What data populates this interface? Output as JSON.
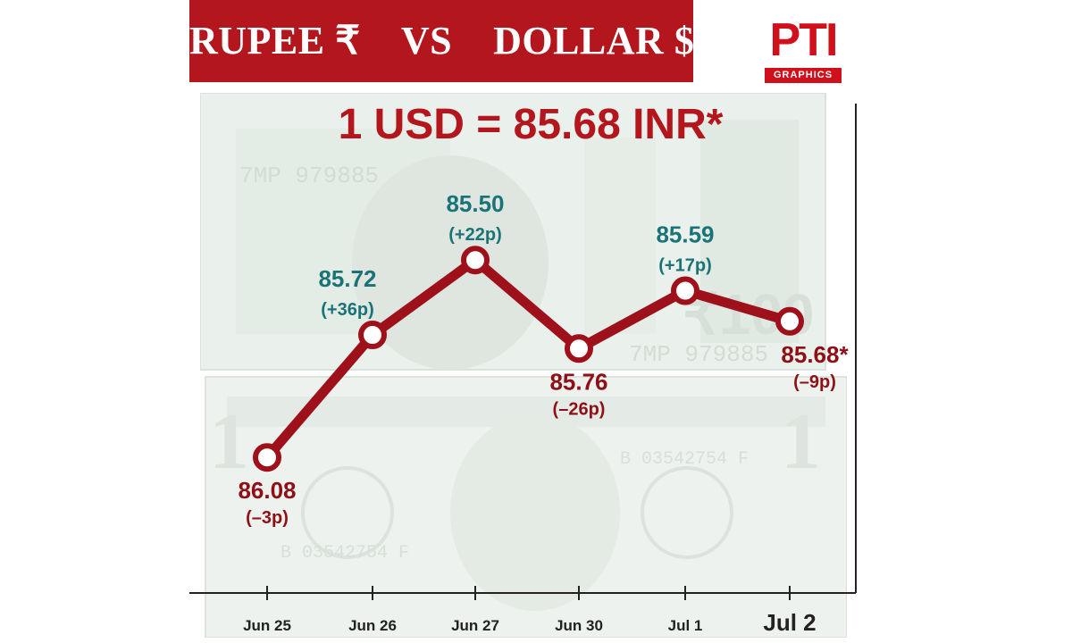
{
  "header": {
    "title": "RUPEE ₹    VS    DOLLAR $"
  },
  "logo": {
    "mark": "PTI",
    "tag": "GRAPHICS"
  },
  "headline": "1 USD = 85.68 INR*",
  "colors": {
    "brand_red": "#b3161c",
    "line_red": "#9e111b",
    "teal": "#1a7377",
    "maroon": "#8e1016"
  },
  "chart_data": {
    "type": "line",
    "title": "1 USD = 85.68 INR*",
    "xlabel": "",
    "ylabel": "",
    "y_inverted": true,
    "ylim": [
      86.3,
      85.25
    ],
    "grid": false,
    "categories": [
      "Jun 25",
      "Jun 26",
      "Jun 27",
      "Jun 30",
      "Jul 1",
      "Jul 2"
    ],
    "series": [
      {
        "values": [
          86.08,
          85.72,
          85.5,
          85.76,
          85.59,
          85.68
        ],
        "value_labels": [
          "86.08",
          "85.72",
          "85.50",
          "85.76",
          "85.59",
          "85.68*"
        ],
        "change_labels": [
          "(–3p)",
          "(+36p)",
          "(+22p)",
          "(–26p)",
          "(+17p)",
          "(–9p)"
        ]
      }
    ]
  }
}
